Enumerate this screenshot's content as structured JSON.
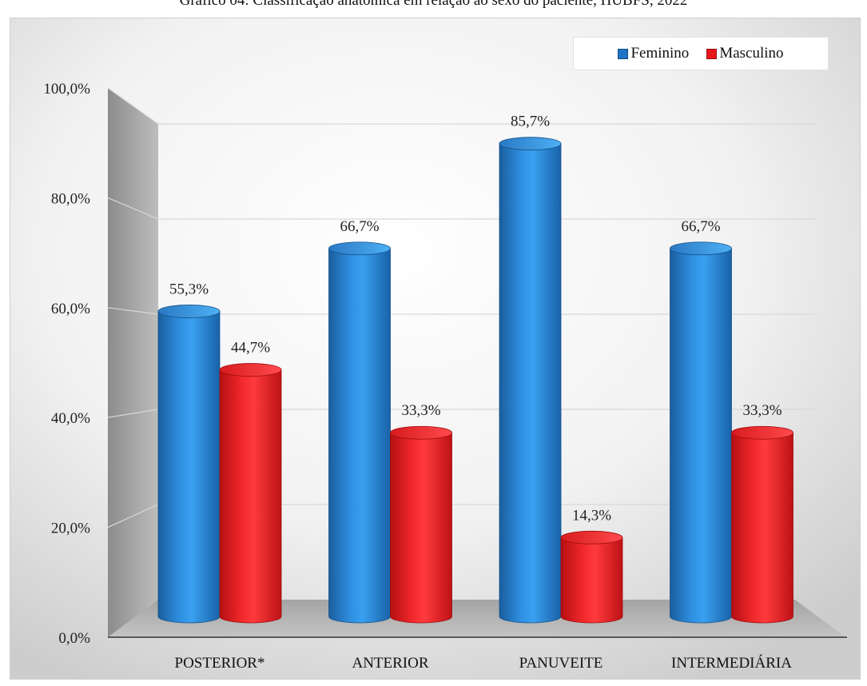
{
  "chart_data": {
    "type": "bar",
    "title": "Gráfico 04: Classificação anatômica em relação ao sexo do paciente, HUBFS, 2022",
    "xlabel": "",
    "ylabel": "",
    "categories": [
      "POSTERIOR*",
      "ANTERIOR",
      "PANUVEITE",
      "INTERMEDIÁRIA"
    ],
    "series": [
      {
        "name": "Feminino",
        "values": [
          55.3,
          66.7,
          85.7,
          66.7
        ],
        "labels": [
          "55,3%",
          "66,7%",
          "85,7%",
          "66,7%"
        ],
        "color": "#1f74c6"
      },
      {
        "name": "Masculino",
        "values": [
          44.7,
          33.3,
          14.3,
          33.3
        ],
        "labels": [
          "44,7%",
          "33,3%",
          "14,3%",
          "33,3%"
        ],
        "color": "#e8171b"
      }
    ],
    "ylim": [
      0,
      100
    ],
    "y_ticks": [
      "0,0%",
      "20,0%",
      "40,0%",
      "60,0%",
      "80,0%",
      "100,0%"
    ],
    "y_tick_values": [
      0,
      20,
      40,
      60,
      80,
      100
    ],
    "grid": true,
    "legend_position": "top-right",
    "style": "3d-cylinder"
  }
}
